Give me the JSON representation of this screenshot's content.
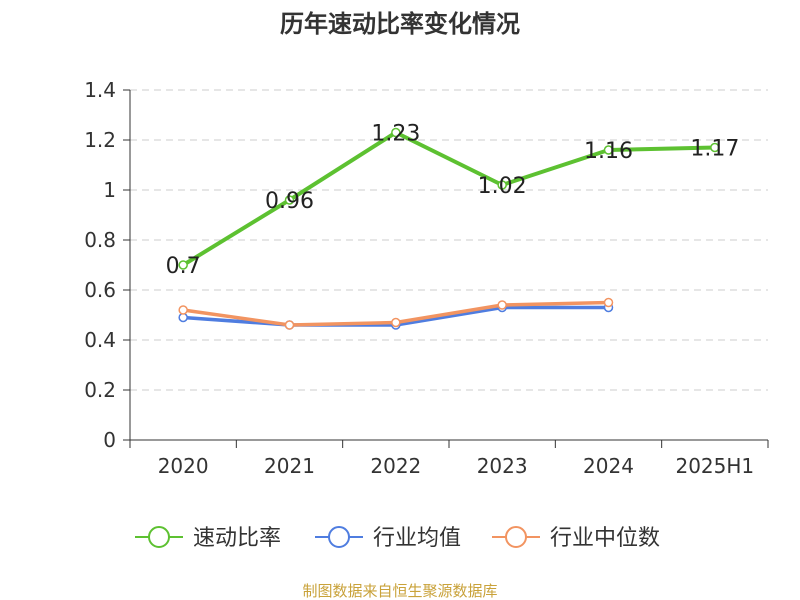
{
  "chart_data": {
    "type": "line",
    "title": "历年速动比率变化情况",
    "categories": [
      "2020",
      "2021",
      "2022",
      "2023",
      "2024",
      "2025H1"
    ],
    "ylim": [
      0,
      1.4
    ],
    "yticks": [
      "0",
      "0.2",
      "0.4",
      "0.6",
      "0.8",
      "1",
      "1.2",
      "1.4"
    ],
    "grid": true,
    "legend_position": "bottom",
    "series": [
      {
        "name": "速动比率",
        "values": [
          0.7,
          0.96,
          1.23,
          1.02,
          1.16,
          1.17
        ],
        "labels": [
          "0.7",
          "0.96",
          "1.23",
          "1.02",
          "1.16",
          "1.17"
        ],
        "color": "#5dc131"
      },
      {
        "name": "行业均值",
        "values": [
          0.49,
          0.46,
          0.46,
          0.53,
          0.53,
          null
        ],
        "color": "#4f7de0"
      },
      {
        "name": "行业中位数",
        "values": [
          0.52,
          0.46,
          0.47,
          0.54,
          0.55,
          null
        ],
        "color": "#f29461"
      }
    ]
  },
  "footer": {
    "source": "制图数据来自恒生聚源数据库"
  }
}
